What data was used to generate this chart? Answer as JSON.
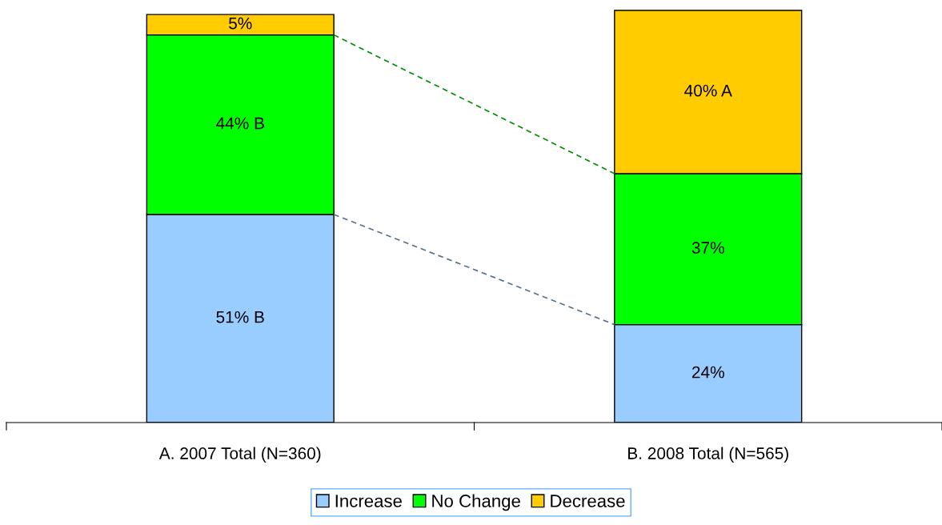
{
  "chart_data": {
    "type": "bar",
    "stacked": true,
    "categories": [
      "A. 2007 Total (N=360)",
      "B. 2008 Total (N=565)"
    ],
    "series": [
      {
        "name": "Increase",
        "color": "#99ccff",
        "values": [
          51,
          24
        ],
        "value_labels": [
          "51% B",
          "24%"
        ]
      },
      {
        "name": "No Change",
        "color": "#00ff00",
        "values": [
          44,
          37
        ],
        "value_labels": [
          "44% B",
          "37%"
        ]
      },
      {
        "name": "Decrease",
        "color": "#ffcc00",
        "values": [
          5,
          40
        ],
        "value_labels": [
          "5%",
          "40% A"
        ]
      }
    ],
    "legend": "bottom",
    "grid": false
  }
}
